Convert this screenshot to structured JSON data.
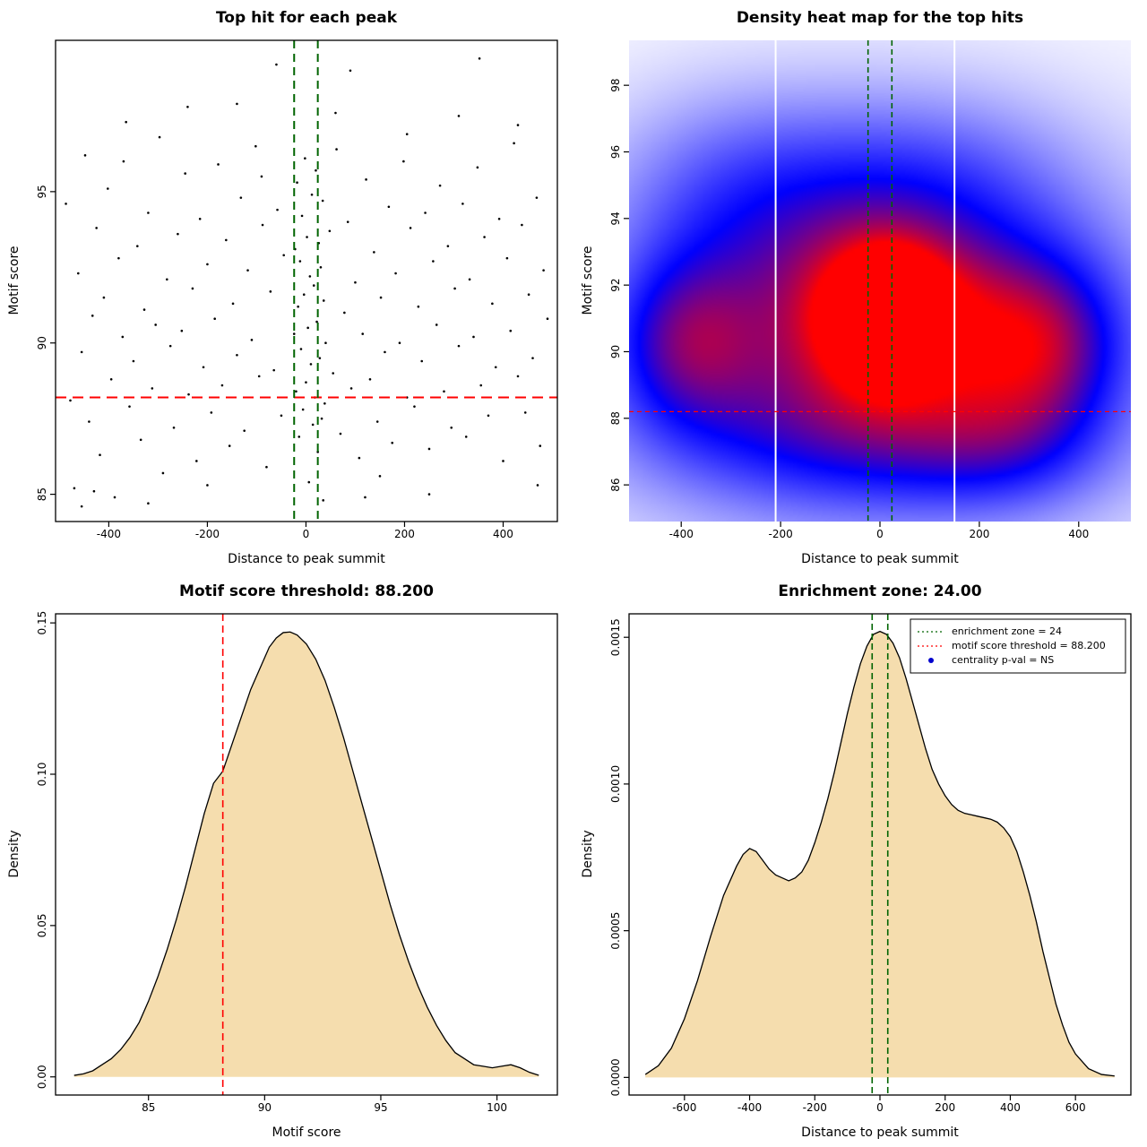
{
  "figure": {
    "background": "#ffffff",
    "accent_red": "#ff0000",
    "accent_green": "#006400",
    "area_fill": "#f5ddae"
  },
  "chart_data": [
    {
      "type": "scatter",
      "title": "Top hit for each peak",
      "xlabel": "Distance to peak summit",
      "ylabel": "Motif score",
      "xlim": [
        -508,
        510
      ],
      "ylim": [
        84.1,
        100.0
      ],
      "xticks": [
        -400,
        -200,
        0,
        200,
        400
      ],
      "xtick_labels": [
        "-400",
        "-200",
        "0",
        "200",
        "400"
      ],
      "yticks": [
        85,
        90,
        95
      ],
      "ytick_labels": [
        "85",
        "90",
        "95"
      ],
      "box": true,
      "point_color": "#000000",
      "ref_lines": [
        {
          "orient": "h",
          "value": 88.2,
          "color": "#ff0000",
          "width": 2,
          "dash": [
            12,
            7
          ]
        },
        {
          "orient": "v",
          "value": -24,
          "color": "#006400",
          "width": 2,
          "dash": [
            9,
            6
          ]
        },
        {
          "orient": "v",
          "value": 24,
          "color": "#006400",
          "width": 2,
          "dash": [
            9,
            6
          ]
        }
      ],
      "points": [
        [
          -487,
          94.6
        ],
        [
          -478,
          88.1
        ],
        [
          -470,
          85.2
        ],
        [
          -462,
          92.3
        ],
        [
          -455,
          89.7
        ],
        [
          -448,
          96.2
        ],
        [
          -440,
          87.4
        ],
        [
          -433,
          90.9
        ],
        [
          -425,
          93.8
        ],
        [
          -418,
          86.3
        ],
        [
          -410,
          91.5
        ],
        [
          -402,
          95.1
        ],
        [
          -395,
          88.8
        ],
        [
          -388,
          84.9
        ],
        [
          -380,
          92.8
        ],
        [
          -372,
          90.2
        ],
        [
          -365,
          97.3
        ],
        [
          -358,
          87.9
        ],
        [
          -350,
          89.4
        ],
        [
          -342,
          93.2
        ],
        [
          -335,
          86.8
        ],
        [
          -328,
          91.1
        ],
        [
          -320,
          94.3
        ],
        [
          -312,
          88.5
        ],
        [
          -305,
          90.6
        ],
        [
          -297,
          96.8
        ],
        [
          -290,
          85.7
        ],
        [
          -282,
          92.1
        ],
        [
          -275,
          89.9
        ],
        [
          -268,
          87.2
        ],
        [
          -260,
          93.6
        ],
        [
          -252,
          90.4
        ],
        [
          -245,
          95.6
        ],
        [
          -238,
          88.3
        ],
        [
          -230,
          91.8
        ],
        [
          -222,
          86.1
        ],
        [
          -215,
          94.1
        ],
        [
          -208,
          89.2
        ],
        [
          -200,
          92.6
        ],
        [
          -192,
          87.7
        ],
        [
          -185,
          90.8
        ],
        [
          -178,
          95.9
        ],
        [
          -170,
          88.6
        ],
        [
          -162,
          93.4
        ],
        [
          -155,
          86.6
        ],
        [
          -148,
          91.3
        ],
        [
          -140,
          89.6
        ],
        [
          -132,
          94.8
        ],
        [
          -125,
          87.1
        ],
        [
          -118,
          92.4
        ],
        [
          -110,
          90.1
        ],
        [
          -102,
          96.5
        ],
        [
          -95,
          88.9
        ],
        [
          -88,
          93.9
        ],
        [
          -80,
          85.9
        ],
        [
          -72,
          91.7
        ],
        [
          -65,
          89.1
        ],
        [
          -58,
          94.4
        ],
        [
          -50,
          87.6
        ],
        [
          -45,
          92.9
        ],
        [
          -24,
          90.3
        ],
        [
          -22,
          93.1
        ],
        [
          -20,
          88.4
        ],
        [
          -18,
          95.3
        ],
        [
          -16,
          91.2
        ],
        [
          -14,
          86.9
        ],
        [
          -12,
          92.7
        ],
        [
          -10,
          89.8
        ],
        [
          -8,
          94.2
        ],
        [
          -6,
          87.8
        ],
        [
          -4,
          91.6
        ],
        [
          -2,
          96.1
        ],
        [
          0,
          88.7
        ],
        [
          2,
          93.5
        ],
        [
          4,
          90.5
        ],
        [
          6,
          85.4
        ],
        [
          8,
          92.2
        ],
        [
          10,
          89.3
        ],
        [
          12,
          94.9
        ],
        [
          14,
          87.3
        ],
        [
          16,
          91.9
        ],
        [
          18,
          88.2
        ],
        [
          20,
          95.7
        ],
        [
          22,
          90.7
        ],
        [
          24,
          86.4
        ],
        [
          26,
          93.3
        ],
        [
          28,
          89.5
        ],
        [
          30,
          92.5
        ],
        [
          32,
          87.5
        ],
        [
          34,
          94.7
        ],
        [
          36,
          91.4
        ],
        [
          38,
          88.0
        ],
        [
          40,
          90.0
        ],
        [
          48,
          93.7
        ],
        [
          55,
          89.0
        ],
        [
          62,
          96.4
        ],
        [
          70,
          87.0
        ],
        [
          78,
          91.0
        ],
        [
          85,
          94.0
        ],
        [
          92,
          88.5
        ],
        [
          100,
          92.0
        ],
        [
          108,
          86.2
        ],
        [
          115,
          90.3
        ],
        [
          122,
          95.4
        ],
        [
          130,
          88.8
        ],
        [
          138,
          93.0
        ],
        [
          145,
          87.4
        ],
        [
          152,
          91.5
        ],
        [
          160,
          89.7
        ],
        [
          168,
          94.5
        ],
        [
          175,
          86.7
        ],
        [
          182,
          92.3
        ],
        [
          190,
          90.0
        ],
        [
          198,
          96.0
        ],
        [
          205,
          88.2
        ],
        [
          212,
          93.8
        ],
        [
          220,
          87.9
        ],
        [
          228,
          91.2
        ],
        [
          235,
          89.4
        ],
        [
          242,
          94.3
        ],
        [
          250,
          86.5
        ],
        [
          258,
          92.7
        ],
        [
          265,
          90.6
        ],
        [
          272,
          95.2
        ],
        [
          280,
          88.4
        ],
        [
          288,
          93.2
        ],
        [
          295,
          87.2
        ],
        [
          302,
          91.8
        ],
        [
          310,
          89.9
        ],
        [
          318,
          94.6
        ],
        [
          325,
          86.9
        ],
        [
          332,
          92.1
        ],
        [
          340,
          90.2
        ],
        [
          348,
          95.8
        ],
        [
          355,
          88.6
        ],
        [
          362,
          93.5
        ],
        [
          370,
          87.6
        ],
        [
          378,
          91.3
        ],
        [
          385,
          89.2
        ],
        [
          392,
          94.1
        ],
        [
          400,
          86.1
        ],
        [
          408,
          92.8
        ],
        [
          415,
          90.4
        ],
        [
          422,
          96.6
        ],
        [
          430,
          88.9
        ],
        [
          438,
          93.9
        ],
        [
          445,
          87.7
        ],
        [
          452,
          91.6
        ],
        [
          460,
          89.5
        ],
        [
          468,
          94.8
        ],
        [
          475,
          86.6
        ],
        [
          482,
          92.4
        ],
        [
          490,
          90.8
        ],
        [
          -455,
          84.6
        ],
        [
          -430,
          85.1
        ],
        [
          352,
          99.4
        ],
        [
          -60,
          99.2
        ],
        [
          470,
          85.3
        ],
        [
          35,
          84.8
        ],
        [
          250,
          85.0
        ],
        [
          -320,
          84.7
        ],
        [
          150,
          85.6
        ],
        [
          90,
          99.0
        ],
        [
          -240,
          97.8
        ],
        [
          310,
          97.5
        ],
        [
          -140,
          97.9
        ],
        [
          60,
          97.6
        ],
        [
          430,
          97.2
        ],
        [
          -370,
          96.0
        ],
        [
          205,
          96.9
        ],
        [
          -90,
          95.5
        ],
        [
          120,
          84.9
        ],
        [
          -200,
          85.3
        ]
      ]
    },
    {
      "type": "heatmap",
      "title": "Density heat map for the top hits",
      "xlabel": "Distance to peak summit",
      "ylabel": "Motif score",
      "xlim": [
        -505,
        505
      ],
      "ylim": [
        84.9,
        99.35
      ],
      "xticks": [
        -400,
        -200,
        0,
        200,
        400
      ],
      "xtick_labels": [
        "-400",
        "-200",
        "0",
        "200",
        "400"
      ],
      "yticks": [
        86,
        88,
        90,
        92,
        94,
        96,
        98
      ],
      "ytick_labels": [
        "86",
        "88",
        "90",
        "92",
        "94",
        "96",
        "98"
      ],
      "box": false,
      "colormap": [
        "#ffffff",
        "#0000ff",
        "#ff0000"
      ],
      "blobs": [
        {
          "x": 15,
          "y": 91.1,
          "sx": 250,
          "sy": 2.6,
          "w": 0.5
        },
        {
          "x": 15,
          "y": 91.1,
          "sx": 110,
          "sy": 1.6,
          "w": 0.45
        },
        {
          "x": 20,
          "y": 91.0,
          "sx": 55,
          "sy": 1.0,
          "w": 0.6
        },
        {
          "x": 330,
          "y": 90.2,
          "sx": 120,
          "sy": 1.9,
          "w": 0.45
        },
        {
          "x": -395,
          "y": 90.3,
          "sx": 110,
          "sy": 1.8,
          "w": 0.42
        },
        {
          "x": -80,
          "y": 87.4,
          "sx": 280,
          "sy": 1.7,
          "w": 0.3
        },
        {
          "x": 250,
          "y": 87.0,
          "sx": 150,
          "sy": 1.4,
          "w": 0.2
        },
        {
          "x": -300,
          "y": 94.8,
          "sx": 180,
          "sy": 2.2,
          "w": 0.22
        },
        {
          "x": 80,
          "y": 95.2,
          "sx": 220,
          "sy": 2.0,
          "w": 0.22
        },
        {
          "x": 0,
          "y": 90.2,
          "sx": 480,
          "sy": 4.6,
          "w": 0.32
        }
      ],
      "white_lines": [
        -210,
        150
      ],
      "ref_lines": [
        {
          "orient": "v",
          "value": -24,
          "color": "#006400",
          "width": 1.6,
          "dash": [
            6,
            4
          ]
        },
        {
          "orient": "v",
          "value": 24,
          "color": "#006400",
          "width": 1.6,
          "dash": [
            6,
            4
          ]
        },
        {
          "orient": "h",
          "value": 88.2,
          "color": "#ff0000",
          "width": 1.2,
          "dash": [
            5,
            4
          ]
        }
      ]
    },
    {
      "type": "area",
      "title": "Motif score threshold: 88.200",
      "xlabel": "Motif score",
      "ylabel": "Density",
      "xlim": [
        81.0,
        102.6
      ],
      "ylim": [
        -0.006,
        0.153
      ],
      "xticks": [
        85,
        90,
        95,
        100
      ],
      "xtick_labels": [
        "85",
        "90",
        "95",
        "100"
      ],
      "yticks": [
        0,
        0.05,
        0.1,
        0.15
      ],
      "ytick_labels": [
        "0.00",
        "0.05",
        "0.10",
        "0.15"
      ],
      "box": true,
      "fill": "#f5ddae",
      "line_color": "#000000",
      "ref_lines": [
        {
          "orient": "v",
          "value": 88.2,
          "color": "#ff0000",
          "width": 1.6,
          "dash": [
            8,
            5
          ]
        }
      ],
      "curve": {
        "x": [
          81.8,
          82.2,
          82.6,
          83.0,
          83.4,
          83.8,
          84.2,
          84.6,
          85.0,
          85.4,
          85.8,
          86.2,
          86.6,
          87.0,
          87.4,
          87.8,
          88.2,
          88.6,
          89.0,
          89.4,
          89.8,
          90.2,
          90.5,
          90.8,
          91.1,
          91.4,
          91.8,
          92.2,
          92.6,
          93.0,
          93.4,
          93.8,
          94.2,
          94.6,
          95.0,
          95.4,
          95.8,
          96.2,
          96.6,
          97.0,
          97.4,
          97.8,
          98.2,
          98.6,
          99.0,
          99.4,
          99.8,
          100.2,
          100.6,
          101.0,
          101.4,
          101.8
        ],
        "y": [
          0.0005,
          0.001,
          0.002,
          0.004,
          0.006,
          0.009,
          0.013,
          0.018,
          0.025,
          0.033,
          0.042,
          0.052,
          0.063,
          0.075,
          0.087,
          0.097,
          0.101,
          0.11,
          0.119,
          0.128,
          0.135,
          0.142,
          0.145,
          0.1468,
          0.147,
          0.146,
          0.143,
          0.138,
          0.131,
          0.122,
          0.112,
          0.101,
          0.09,
          0.079,
          0.068,
          0.057,
          0.047,
          0.038,
          0.03,
          0.023,
          0.017,
          0.012,
          0.008,
          0.006,
          0.004,
          0.0035,
          0.003,
          0.0035,
          0.004,
          0.003,
          0.0015,
          0.0005
        ]
      }
    },
    {
      "type": "area",
      "title": "Enrichment zone: 24.00",
      "xlabel": "Distance to peak summit",
      "ylabel": "Density",
      "xlim": [
        -770,
        770
      ],
      "ylim": [
        -6e-05,
        0.00158
      ],
      "xticks": [
        -600,
        -400,
        -200,
        0,
        200,
        400,
        600
      ],
      "xtick_labels": [
        "-600",
        "-400",
        "-200",
        "0",
        "200",
        "400",
        "600"
      ],
      "yticks": [
        0,
        0.0005,
        0.001,
        0.0015
      ],
      "ytick_labels": [
        "0.0000",
        "0.0005",
        "0.0010",
        "0.0015"
      ],
      "box": true,
      "fill": "#f5ddae",
      "line_color": "#000000",
      "ref_lines": [
        {
          "orient": "v",
          "value": -24,
          "color": "#006400",
          "width": 1.6,
          "dash": [
            7,
            4
          ]
        },
        {
          "orient": "v",
          "value": 24,
          "color": "#006400",
          "width": 1.6,
          "dash": [
            7,
            4
          ]
        }
      ],
      "legend": {
        "items": [
          {
            "marker": "line",
            "color": "#006400",
            "label": "enrichment zone = 24"
          },
          {
            "marker": "line",
            "color": "#ff0000",
            "label": "motif score threshold = 88.200"
          },
          {
            "marker": "point",
            "color": "#0000cd",
            "label": "centrality p-val = NS"
          }
        ]
      },
      "curve": {
        "x": [
          -720,
          -680,
          -640,
          -600,
          -560,
          -520,
          -480,
          -440,
          -420,
          -400,
          -380,
          -360,
          -340,
          -320,
          -300,
          -280,
          -260,
          -240,
          -220,
          -200,
          -180,
          -160,
          -140,
          -120,
          -100,
          -80,
          -60,
          -40,
          -20,
          0,
          20,
          40,
          60,
          80,
          100,
          120,
          140,
          160,
          180,
          200,
          220,
          240,
          260,
          280,
          300,
          320,
          340,
          360,
          380,
          400,
          420,
          440,
          460,
          480,
          500,
          520,
          540,
          560,
          580,
          600,
          640,
          680,
          720
        ],
        "y": [
          1e-05,
          4e-05,
          0.0001,
          0.0002,
          0.00033,
          0.00048,
          0.00062,
          0.00072,
          0.00076,
          0.00078,
          0.00077,
          0.00074,
          0.00071,
          0.00069,
          0.00068,
          0.00067,
          0.00068,
          0.0007,
          0.00074,
          0.0008,
          0.00087,
          0.00095,
          0.00104,
          0.00114,
          0.00124,
          0.00133,
          0.00141,
          0.00147,
          0.00151,
          0.00152,
          0.00151,
          0.00148,
          0.00143,
          0.00136,
          0.00128,
          0.0012,
          0.00112,
          0.00105,
          0.001,
          0.00096,
          0.00093,
          0.00091,
          0.0009,
          0.000895,
          0.00089,
          0.000885,
          0.00088,
          0.00087,
          0.00085,
          0.00082,
          0.00077,
          0.0007,
          0.00062,
          0.00053,
          0.00043,
          0.00034,
          0.00025,
          0.00018,
          0.00012,
          8e-05,
          3e-05,
          1e-05,
          5e-06
        ]
      }
    }
  ]
}
